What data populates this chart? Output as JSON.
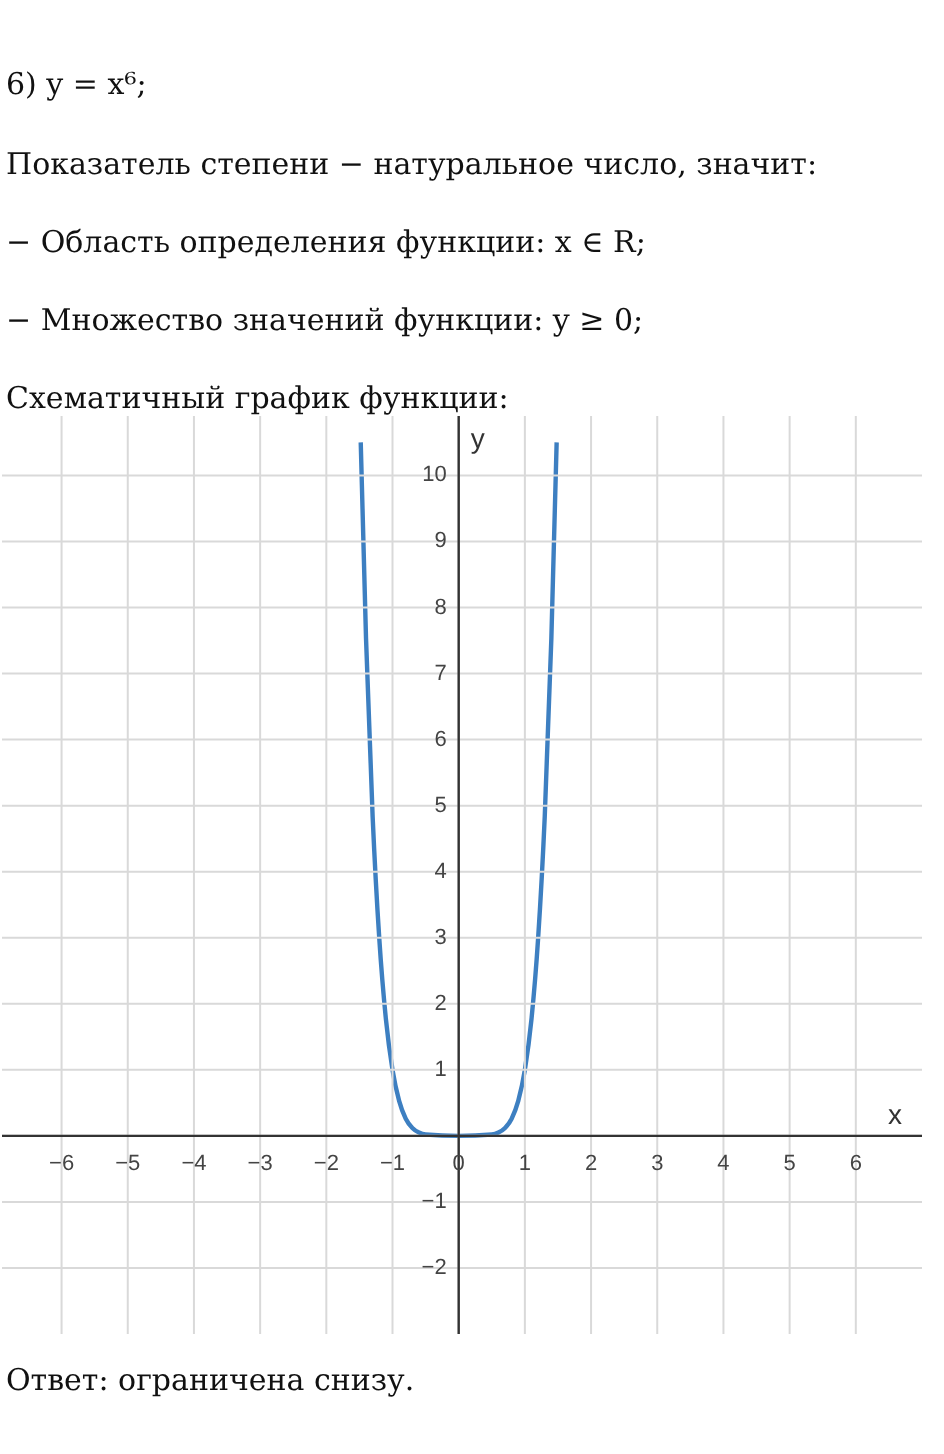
{
  "chart_data": {
    "type": "line",
    "title": "6) y = x⁶;",
    "annotations": [
      "Показатель степени − натуральное число, значит:",
      "− Область определения функции:  x ∈ R;",
      "− Множество значений функции:  y ≥ 0;",
      "Схематичный график функции:",
      "Ответ:  ограничена снизу."
    ],
    "xlabel": "x",
    "ylabel": "y",
    "x": [
      -1.48,
      -1.4,
      -1.3,
      -1.2,
      -1.1,
      -1.0,
      -0.9,
      -0.8,
      -0.7,
      -0.6,
      -0.5,
      0,
      0.5,
      0.6,
      0.7,
      0.8,
      0.9,
      1.0,
      1.1,
      1.2,
      1.3,
      1.4,
      1.48
    ],
    "series": [
      {
        "color": "#3d7fc1",
        "values": [
          10.5,
          7.53,
          4.83,
          2.99,
          1.77,
          1.0,
          0.53,
          0.26,
          0.12,
          0.05,
          0.02,
          0,
          0.02,
          0.05,
          0.12,
          0.26,
          0.53,
          1.0,
          1.77,
          2.99,
          4.83,
          7.53,
          10.5
        ]
      }
    ],
    "xlim": [
      -6.9,
      7
    ],
    "ylim": [
      -3,
      10.9
    ],
    "xticks": [
      -6,
      -5,
      -4,
      -3,
      -2,
      -1,
      0,
      1,
      2,
      3,
      4,
      5,
      6
    ],
    "yticks": [
      -2,
      -1,
      {
        "value": 0,
        "label": null
      },
      1,
      2,
      3,
      4,
      5,
      6,
      7,
      8,
      9,
      10
    ],
    "grid": true,
    "legend": false,
    "marker": "none",
    "line_style": "solid"
  }
}
